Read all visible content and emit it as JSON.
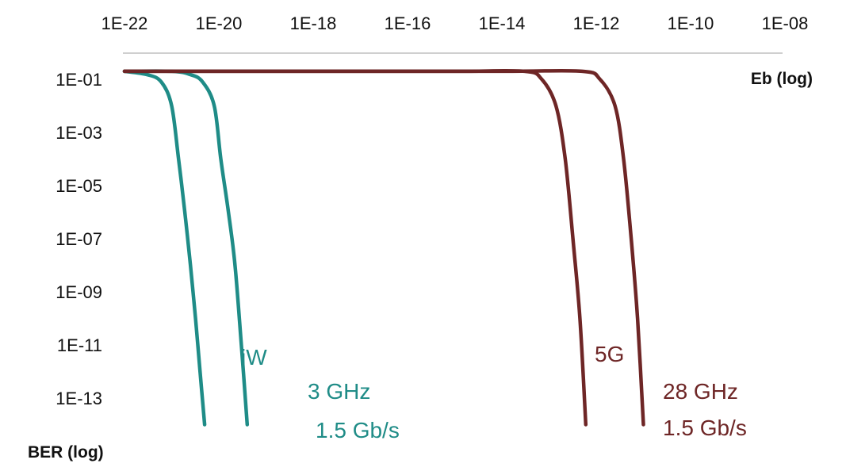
{
  "chart_data": {
    "type": "line",
    "title": "",
    "xlabel": "Eb (log)",
    "ylabel": "BER (log)",
    "x_scale": "log",
    "y_scale": "log",
    "x_ticks": [
      "1E-22",
      "1E-20",
      "1E-18",
      "1E-16",
      "1E-14",
      "1E-12",
      "1E-10",
      "1E-08"
    ],
    "y_ticks": [
      "1E-01",
      "1E-03",
      "1E-05",
      "1E-07",
      "1E-09",
      "1E-11",
      "1E-13"
    ],
    "x_axis_position": "top",
    "grid": false,
    "legend": "none",
    "series": [
      {
        "color": "#1f8c87",
        "x": [
          1e-22,
          3e-22,
          6e-22,
          1e-21,
          1.4e-21,
          1.9e-21,
          2.5e-21,
          3.2e-21,
          4e-21,
          5e-21
        ],
        "y": [
          0.2,
          0.15,
          0.08,
          0.01,
          0.0001,
          1e-06,
          1e-08,
          1e-10,
          1e-12,
          1e-14
        ]
      },
      {
        "color": "#1f8c87",
        "x": [
          1e-22,
          1e-21,
          2.5e-21,
          4.5e-21,
          8e-21,
          1.1e-20,
          1.6e-20,
          2.2e-20,
          3e-20,
          4e-20
        ],
        "y": [
          0.2,
          0.2,
          0.15,
          0.08,
          0.01,
          0.0001,
          1e-06,
          1e-08,
          1e-11,
          1e-14
        ]
      },
      {
        "color": "#6e2626",
        "x": [
          1e-22,
          1e-18,
          1e-15,
          3e-14,
          7e-14,
          1.4e-13,
          2.2e-13,
          3.2e-13,
          4.5e-13,
          6e-13
        ],
        "y": [
          0.2,
          0.2,
          0.2,
          0.2,
          0.1,
          0.01,
          0.0001,
          1e-07,
          1e-10,
          1e-14
        ]
      },
      {
        "color": "#6e2626",
        "x": [
          1e-22,
          1e-18,
          1e-14,
          5e-13,
          1.2e-12,
          2.5e-12,
          3.8e-12,
          5.5e-12,
          7.5e-12,
          1e-11
        ],
        "y": [
          0.2,
          0.2,
          0.2,
          0.2,
          0.1,
          0.01,
          0.0001,
          1e-07,
          1e-10,
          1e-14
        ]
      }
    ],
    "annotations": [
      {
        "text": "iW",
        "color": "#1f8c87"
      },
      {
        "text": "3 GHz",
        "color": "#1f8c87"
      },
      {
        "text": "1.5 Gb/s",
        "color": "#1f8c87"
      },
      {
        "text": "5G",
        "color": "#6e2626"
      },
      {
        "text": "28 GHz",
        "color": "#6e2626"
      },
      {
        "text": "1.5 Gb/s",
        "color": "#6e2626"
      }
    ]
  }
}
